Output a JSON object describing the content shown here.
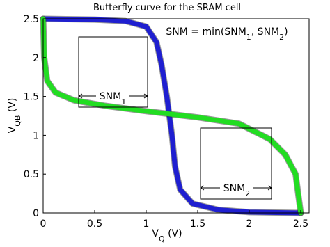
{
  "chart_data": {
    "type": "line",
    "title": "Butterfly curve for the SRAM cell",
    "xlabel": [
      {
        "text": "V",
        "sub": false
      },
      {
        "text": "Q",
        "sub": true
      },
      {
        "text": " (V)",
        "sub": false
      }
    ],
    "ylabel": [
      {
        "text": "V",
        "sub": false
      },
      {
        "text": "QB",
        "sub": true
      },
      {
        "text": " (V)",
        "sub": false
      }
    ],
    "xlim": [
      0,
      2.5
    ],
    "ylim": [
      0,
      2.5
    ],
    "xticks": [
      0,
      0.5,
      1,
      1.5,
      2,
      2.5
    ],
    "yticks": [
      0,
      0.5,
      1,
      1.5,
      2,
      2.5
    ],
    "grid": false,
    "series": [
      {
        "color": "#1f1fd0",
        "x": [
          0,
          0.5,
          0.8,
          1.0,
          1.1,
          1.15,
          1.2,
          1.25,
          1.28,
          1.33,
          1.45,
          1.7,
          2.0,
          2.5
        ],
        "values": [
          2.5,
          2.49,
          2.47,
          2.4,
          2.2,
          1.9,
          1.5,
          1.0,
          0.6,
          0.3,
          0.12,
          0.04,
          0.01,
          0
        ]
      },
      {
        "color": "#22dd22",
        "x": [
          0,
          0.01,
          0.04,
          0.12,
          0.3,
          0.6,
          1.0,
          1.5,
          1.9,
          2.2,
          2.35,
          2.45,
          2.48,
          2.5
        ],
        "values": [
          2.5,
          2.0,
          1.7,
          1.55,
          1.45,
          1.38,
          1.31,
          1.23,
          1.15,
          0.95,
          0.75,
          0.5,
          0.2,
          0
        ]
      }
    ],
    "annotations": {
      "formula": [
        {
          "text": "SNM = min(SNM",
          "sub": false
        },
        {
          "text": "1",
          "sub": true
        },
        {
          "text": ", SNM",
          "sub": false
        },
        {
          "text": "2",
          "sub": true
        },
        {
          "text": ")",
          "sub": false
        }
      ],
      "snm1": [
        {
          "text": "SNM",
          "sub": false
        },
        {
          "text": "1",
          "sub": true
        }
      ],
      "snm2": [
        {
          "text": "SNM",
          "sub": false
        },
        {
          "text": "2",
          "sub": true
        }
      ]
    }
  }
}
